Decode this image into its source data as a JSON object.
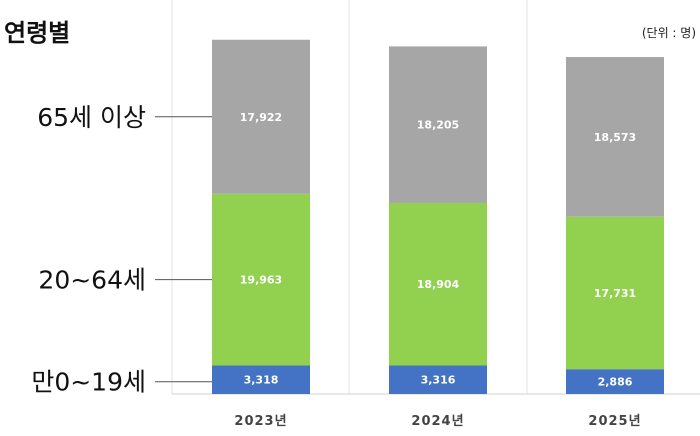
{
  "chart_data": {
    "type": "bar",
    "stacked": true,
    "title": "연령별",
    "unit_note": "(단위 : 명)",
    "categories": [
      "2023년",
      "2024년",
      "2025년"
    ],
    "series": [
      {
        "name": "만0~19세",
        "values": [
          3318,
          3316,
          2886
        ],
        "labels": [
          "3,318",
          "3,316",
          "2,886"
        ],
        "color": "#4472c4"
      },
      {
        "name": "20~64세",
        "values": [
          19963,
          18904,
          17731
        ],
        "labels": [
          "19,963",
          "18,904",
          "17,731"
        ],
        "color": "#92d050"
      },
      {
        "name": "65세 이상",
        "values": [
          17922,
          18205,
          18573
        ],
        "labels": [
          "17,922",
          "18,205",
          "18,573"
        ],
        "color": "#a6a6a6"
      }
    ],
    "legend": "left",
    "grid": false
  }
}
